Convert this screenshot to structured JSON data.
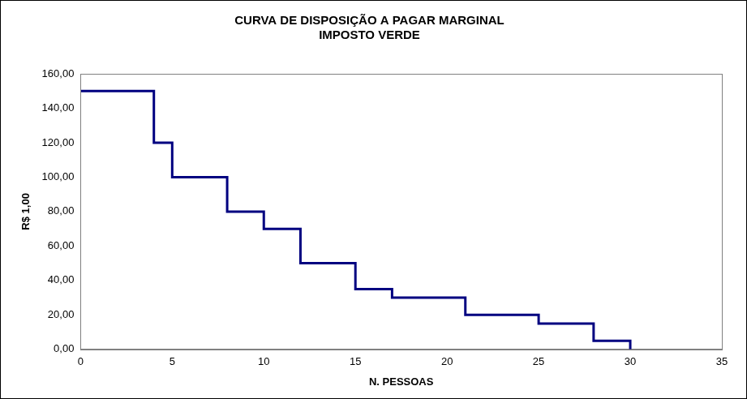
{
  "chart_data": {
    "type": "line",
    "title": [
      "CURVA DE DISPOSIÇÃO A PAGAR MARGINAL",
      "IMPOSTO VERDE"
    ],
    "x_label": "N. PESSOAS",
    "y_label": "R$ 1,00",
    "x": [
      0,
      4,
      5,
      8,
      10,
      12,
      15,
      17,
      21,
      25,
      28,
      30
    ],
    "values": [
      150,
      120,
      100,
      80,
      70,
      50,
      35,
      30,
      20,
      15,
      5,
      0
    ],
    "color": "#000080",
    "line_style": "stepped",
    "marker": "none",
    "xlim": [
      0,
      35
    ],
    "xticks": [
      0,
      5,
      10,
      15,
      20,
      25,
      30,
      35
    ],
    "ylim": [
      0,
      160
    ],
    "yticks": [
      {
        "value": 0,
        "label": "0,00"
      },
      {
        "value": 20,
        "label": "20,00"
      },
      {
        "value": 40,
        "label": "40,00"
      },
      {
        "value": 60,
        "label": "60,00"
      },
      {
        "value": 80,
        "label": "80,00"
      },
      {
        "value": 100,
        "label": "100,00"
      },
      {
        "value": 120,
        "label": "120,00"
      },
      {
        "value": 140,
        "label": "140,00"
      },
      {
        "value": 160,
        "label": "160,00"
      }
    ],
    "grid": false
  }
}
